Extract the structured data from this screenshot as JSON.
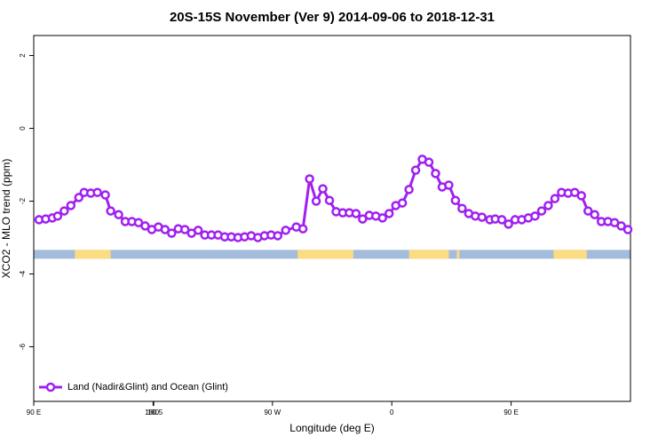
{
  "chart_data": {
    "type": "line",
    "title": "20S-15S November (Ver 9)   2014-09-06 to 2018-12-31",
    "x_label": "Longitude (deg E)",
    "y_label": "XCO2 - MLO trend (ppm)",
    "xlim": [
      90,
      540
    ],
    "ylim": [
      -7.5,
      2.55
    ],
    "xticks": [
      {
        "value": 90,
        "label": "90 E"
      },
      180,
      {
        "value": 270,
        "label": "90 W"
      },
      {
        "value": 360,
        "label": "0"
      },
      {
        "value": 450,
        "label": "90 E"
      },
      180.5
    ],
    "yticks": [
      2,
      0,
      -2,
      -4,
      -6
    ],
    "legend": "bottom-left",
    "series": [
      {
        "name": "Land (Nadir&Glint) and Ocean (Glint)",
        "color": "#a020f0",
        "x": [
          94,
          99,
          104,
          108,
          113,
          118,
          124,
          128,
          133,
          138,
          144,
          148,
          154,
          159,
          164,
          169,
          174,
          179,
          184,
          189,
          194,
          199,
          204,
          209,
          214,
          219,
          224,
          229,
          234,
          239,
          244,
          249,
          254,
          259,
          264,
          269,
          274,
          280,
          288,
          293,
          298,
          303,
          308,
          313,
          318,
          323,
          328,
          333,
          338,
          343,
          348,
          353,
          358,
          363,
          368,
          373,
          378,
          383,
          388,
          393,
          398,
          403,
          408,
          413,
          418,
          423,
          428,
          434,
          438,
          443,
          448,
          453,
          458,
          463,
          468,
          473,
          478,
          483,
          488,
          493,
          498,
          503,
          508,
          513,
          518,
          523,
          528,
          533,
          538
        ],
        "values": [
          -2.51,
          -2.49,
          -2.46,
          -2.41,
          -2.27,
          -2.12,
          -1.9,
          -1.76,
          -1.78,
          -1.76,
          -1.83,
          -2.27,
          -2.37,
          -2.56,
          -2.56,
          -2.59,
          -2.68,
          -2.78,
          -2.71,
          -2.78,
          -2.88,
          -2.76,
          -2.78,
          -2.88,
          -2.8,
          -2.93,
          -2.93,
          -2.93,
          -2.98,
          -2.98,
          -3.0,
          -2.98,
          -2.95,
          -3.0,
          -2.95,
          -2.93,
          -2.95,
          -2.8,
          -2.71,
          -2.76,
          -1.39,
          -2.0,
          -1.66,
          -1.98,
          -2.29,
          -2.32,
          -2.32,
          -2.34,
          -2.49,
          -2.39,
          -2.41,
          -2.46,
          -2.34,
          -2.12,
          -2.05,
          -1.68,
          -1.15,
          -0.85,
          -0.93,
          -1.24,
          -1.61,
          -1.56,
          -1.98,
          -2.2,
          -2.34,
          -2.41,
          -2.44,
          -2.51,
          -2.49,
          -2.51,
          -2.63,
          -2.51,
          -2.51,
          -2.46,
          -2.41,
          -2.27,
          -2.12,
          -1.93,
          -1.76,
          -1.78,
          -1.76,
          -1.85,
          -2.27,
          -2.37,
          -2.56,
          -2.56,
          -2.59,
          -2.68,
          -2.78
        ]
      }
    ],
    "band": {
      "level": -3.46,
      "ocean_color": "#a4bcdc",
      "land_color": "#fcdc80",
      "land_ranges": [
        [
          121,
          148
        ],
        [
          289,
          331
        ],
        [
          373,
          403
        ],
        [
          409,
          411
        ],
        [
          482,
          507
        ]
      ]
    }
  }
}
